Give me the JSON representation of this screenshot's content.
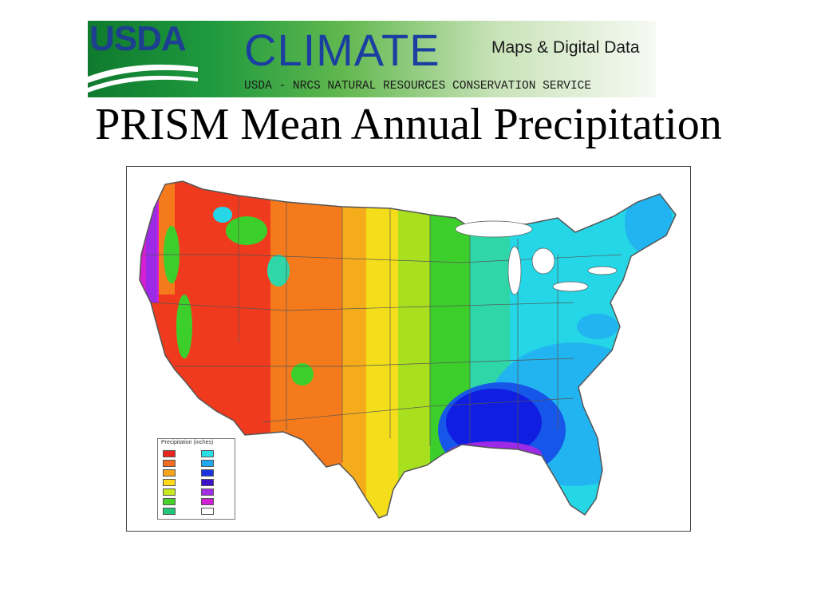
{
  "banner": {
    "logo_text": "USDA",
    "climate": "CLIMATE",
    "maps": "Maps & Digital Data",
    "agency": "USDA - NRCS NATURAL RESOURCES CONSERVATION SERVICE"
  },
  "title": "PRISM Mean Annual Precipitation",
  "map": {
    "legend_title": "Precipitation (inches)",
    "legend_colors": [
      "#e8251f",
      "#f26d1f",
      "#f5a41c",
      "#ffd91a",
      "#c8e81e",
      "#46d22b",
      "#22c77a",
      "#27e0e6",
      "#1fa9f0",
      "#1b34e0",
      "#3b12c7",
      "#a32ee8",
      "#d21fd6",
      "#ffffff"
    ],
    "palette": {
      "very_dry": "#f03a1e",
      "dry": "#f57a1c",
      "semi_arid": "#f5ac1a",
      "moderate_dry": "#f4dd1b",
      "moderate": "#a8e01f",
      "green": "#3ccf2c",
      "teal": "#2ed6a8",
      "cyan": "#24d6e6",
      "light_blue": "#22b4f0",
      "blue": "#1656e8",
      "deep_blue": "#0f1ee0",
      "purple": "#9c2ae6",
      "magenta": "#d61ed2",
      "boundary": "#555555"
    }
  }
}
